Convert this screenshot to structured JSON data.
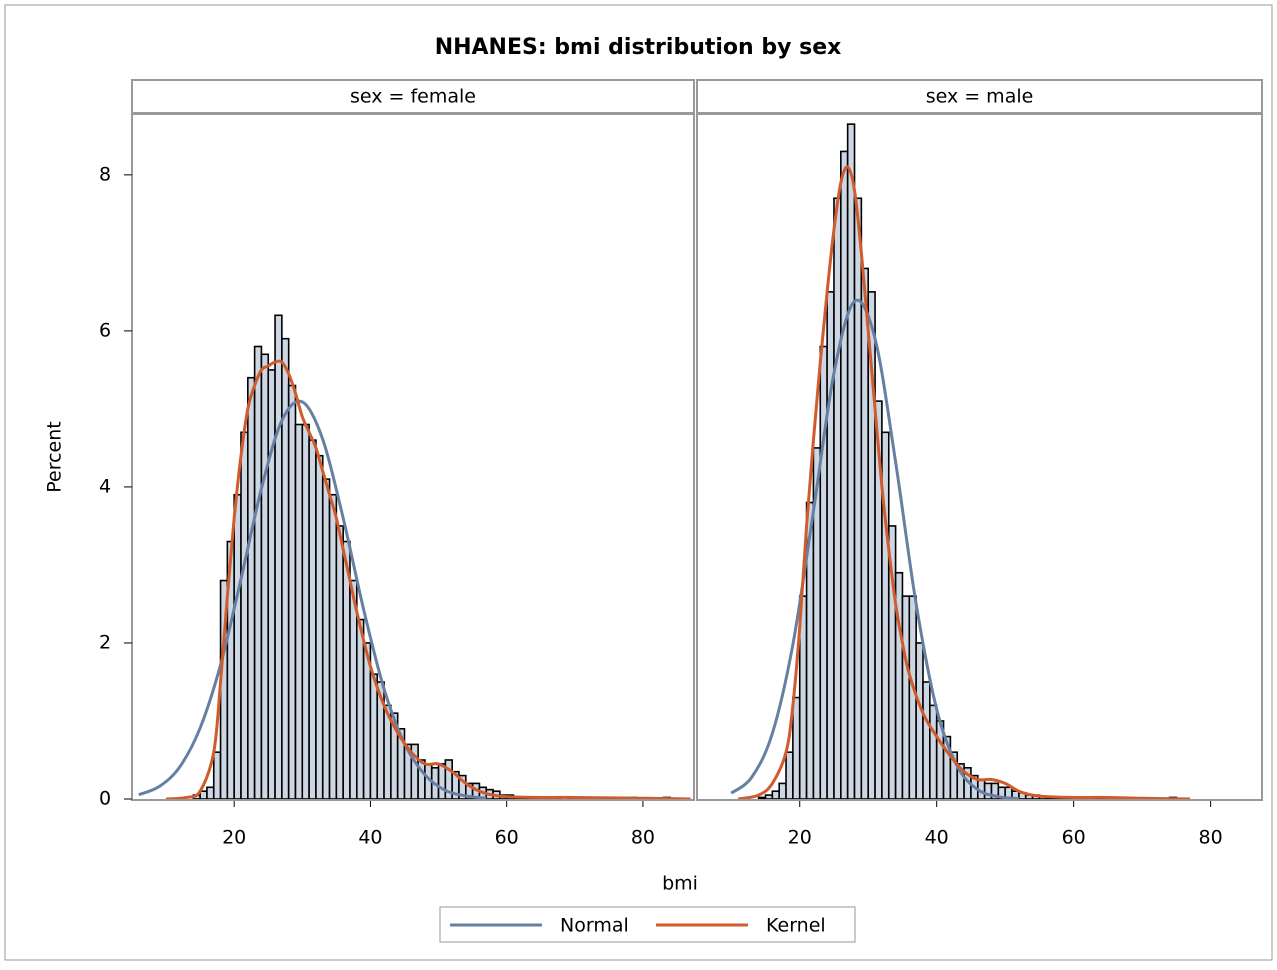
{
  "chart_data": {
    "type": "histogram",
    "title": "NHANES: bmi distribution by sex",
    "xlabel": "bmi",
    "ylabel": "Percent",
    "xlim": [
      5,
      87.5
    ],
    "ylim": [
      0,
      8.78
    ],
    "xticks": [
      20,
      40,
      60,
      80
    ],
    "yticks": [
      0,
      2,
      4,
      6,
      8
    ],
    "bar_color": "#cdd6e3",
    "series": [
      {
        "name": "Normal",
        "color": "#667fa2"
      },
      {
        "name": "Kernel",
        "color": "#d05b2c"
      }
    ],
    "panels": [
      {
        "label": "sex = female",
        "bins": [
          14,
          15,
          16,
          17,
          18,
          19,
          20,
          21,
          22,
          23,
          24,
          25,
          26,
          27,
          28,
          29,
          30,
          31,
          32,
          33,
          34,
          35,
          36,
          37,
          38,
          39,
          40,
          41,
          42,
          43,
          44,
          45,
          46,
          47,
          48,
          49,
          50,
          51,
          52,
          53,
          54,
          55,
          56,
          57,
          58,
          59,
          60,
          61,
          62,
          63,
          64,
          65,
          66,
          67,
          68,
          69,
          70,
          71,
          72,
          73,
          74,
          75,
          76,
          77,
          78,
          79,
          80,
          81,
          82,
          83,
          84,
          85
        ],
        "counts": [
          0.05,
          0.1,
          0.15,
          0.6,
          2.8,
          3.3,
          3.9,
          4.7,
          5.4,
          5.8,
          5.7,
          5.5,
          6.2,
          5.9,
          5.3,
          4.8,
          4.8,
          4.6,
          4.4,
          4.1,
          3.9,
          3.5,
          3.3,
          2.8,
          2.3,
          2.0,
          1.6,
          1.5,
          1.2,
          1.1,
          0.9,
          0.7,
          0.7,
          0.5,
          0.45,
          0.4,
          0.45,
          0.5,
          0.35,
          0.3,
          0.2,
          0.2,
          0.15,
          0.12,
          0.1,
          0.05,
          0.05,
          0.03,
          0.02,
          0.02,
          0.01,
          0.02,
          0.01,
          0.01,
          0,
          0.01,
          0,
          0.01,
          0,
          0,
          0,
          0,
          0,
          0,
          0.02,
          0,
          0,
          0,
          0,
          0.02,
          0
        ],
        "curves": [
          {
            "x": [
              6,
              9,
              12,
              15,
              18,
              21,
              24,
              27,
              30,
              33,
              36,
              39,
              42,
              45,
              48,
              51,
              54,
              57
            ],
            "values": [
              0.055,
              0.16,
              0.41,
              0.91,
              1.72,
              2.82,
              3.98,
              4.85,
              5.09,
              4.61,
              3.6,
              2.43,
              1.41,
              0.71,
              0.31,
              0.11,
              0.04,
              0.01
            ]
          },
          {
            "x": [
              10,
              13,
              15,
              17,
              18,
              19,
              20,
              21,
              22,
              23,
              24,
              25,
              26,
              27,
              28,
              29,
              30,
              31,
              32,
              33,
              34,
              35,
              36,
              37,
              38,
              40,
              42,
              44,
              46,
              48,
              50,
              52,
              54,
              56,
              58,
              60,
              65,
              70,
              80,
              87
            ],
            "values": [
              0,
              0.02,
              0.1,
              0.6,
              1.5,
              2.6,
              3.6,
              4.4,
              5.0,
              5.3,
              5.5,
              5.55,
              5.6,
              5.6,
              5.45,
              5.2,
              4.9,
              4.7,
              4.5,
              4.2,
              3.9,
              3.6,
              3.2,
              2.8,
              2.4,
              1.7,
              1.2,
              0.85,
              0.6,
              0.45,
              0.45,
              0.35,
              0.2,
              0.1,
              0.05,
              0.03,
              0.02,
              0.02,
              0.01,
              0
            ]
          }
        ]
      },
      {
        "label": "sex = male",
        "bins": [
          14,
          15,
          16,
          17,
          18,
          19,
          20,
          21,
          22,
          23,
          24,
          25,
          26,
          27,
          28,
          29,
          30,
          31,
          32,
          33,
          34,
          35,
          36,
          37,
          38,
          39,
          40,
          41,
          42,
          43,
          44,
          45,
          46,
          47,
          48,
          49,
          50,
          51,
          52,
          53,
          54,
          55,
          56,
          57,
          58,
          59,
          60,
          61,
          62,
          63,
          64,
          65,
          66,
          67,
          68,
          69,
          70,
          71,
          72,
          73,
          74,
          75,
          76,
          77
        ],
        "counts": [
          0.02,
          0.05,
          0.1,
          0.2,
          0.6,
          1.3,
          2.6,
          3.8,
          4.5,
          5.8,
          6.5,
          7.7,
          8.3,
          8.65,
          7.7,
          6.8,
          6.5,
          5.1,
          4.7,
          3.5,
          2.9,
          2.6,
          2.6,
          2.0,
          1.5,
          1.2,
          1.0,
          0.8,
          0.6,
          0.45,
          0.4,
          0.3,
          0.25,
          0.2,
          0.2,
          0.15,
          0.15,
          0.1,
          0.08,
          0.05,
          0.05,
          0.03,
          0.02,
          0.02,
          0.01,
          0.01,
          0,
          0.01,
          0,
          0.02,
          0.01,
          0,
          0,
          0.01,
          0,
          0,
          0,
          0,
          0,
          0,
          0.02,
          0,
          0
        ],
        "curves": [
          {
            "x": [
              10,
              13,
              16,
              19,
              22,
              25,
              28,
              31,
              34,
              37,
              40,
              43,
              46,
              49,
              52
            ],
            "values": [
              0.075,
              0.28,
              0.84,
              1.98,
              3.69,
              5.46,
              6.38,
              5.9,
              4.32,
              2.5,
              1.15,
              0.42,
              0.12,
              0.03,
              0.005
            ]
          },
          {
            "x": [
              11,
              14,
              16,
              18,
              19,
              20,
              21,
              22,
              23,
              24,
              25,
              26,
              27,
              28,
              29,
              30,
              31,
              32,
              33,
              34,
              35,
              36,
              38,
              40,
              42,
              44,
              46,
              48,
              50,
              52,
              54,
              56,
              60,
              65,
              70,
              77
            ],
            "values": [
              0,
              0.05,
              0.2,
              0.6,
              1.2,
              2.2,
              3.5,
              4.6,
              5.6,
              6.5,
              7.3,
              7.9,
              8.1,
              7.8,
              7.0,
              6.0,
              5.0,
              4.0,
              3.2,
              2.5,
              2.0,
              1.6,
              1.1,
              0.8,
              0.55,
              0.35,
              0.25,
              0.25,
              0.2,
              0.1,
              0.05,
              0.03,
              0.02,
              0.02,
              0.01,
              0
            ]
          }
        ]
      }
    ]
  }
}
